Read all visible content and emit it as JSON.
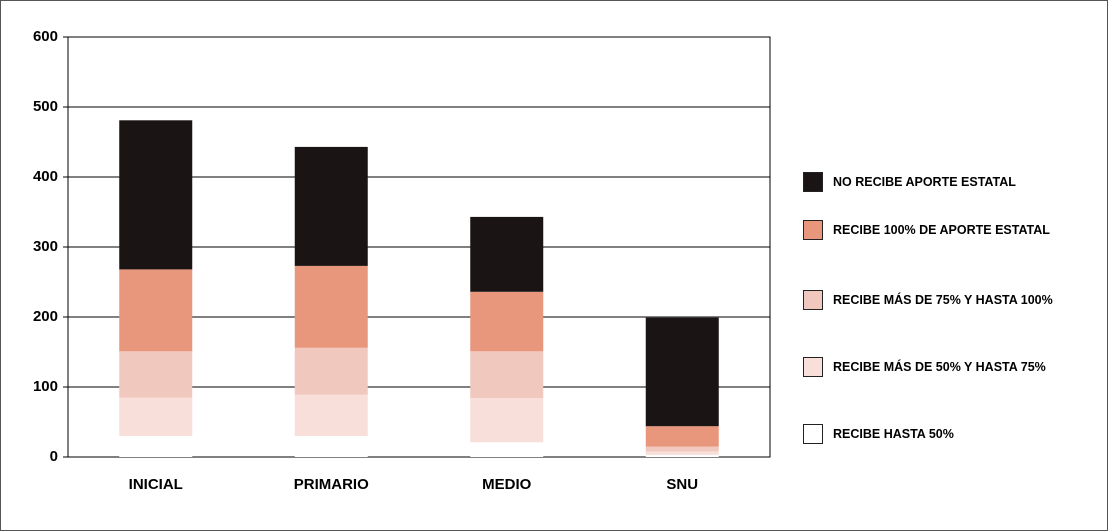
{
  "chart_data": {
    "type": "stacked_bar",
    "categories": [
      "INICIAL",
      "PRIMARIO",
      "MEDIO",
      "SNU"
    ],
    "series": [
      {
        "name": "RECIBE HASTA 50%",
        "color": "#ffffff",
        "values": [
          30,
          30,
          21,
          3
        ]
      },
      {
        "name": "RECIBE MÁS DE 50% Y HASTA 75%",
        "color": "#f9dfd9",
        "values": [
          55,
          59,
          63,
          5
        ]
      },
      {
        "name": "RECIBE MÁS DE 75% Y HASTA 100%",
        "color": "#f1c8bd",
        "values": [
          66,
          67,
          67,
          7
        ]
      },
      {
        "name": "RECIBE 100% DE APORTE ESTATAL",
        "color": "#e8967c",
        "values": [
          117,
          117,
          85,
          29
        ]
      },
      {
        "name": "NO RECIBE APORTE ESTATAL",
        "color": "#1a1414",
        "values": [
          213,
          170,
          107,
          155
        ]
      }
    ],
    "ylim": [
      0,
      600
    ],
    "yticks": [
      0,
      100,
      200,
      300,
      400,
      500,
      600
    ],
    "grid": true,
    "legend": "right"
  }
}
